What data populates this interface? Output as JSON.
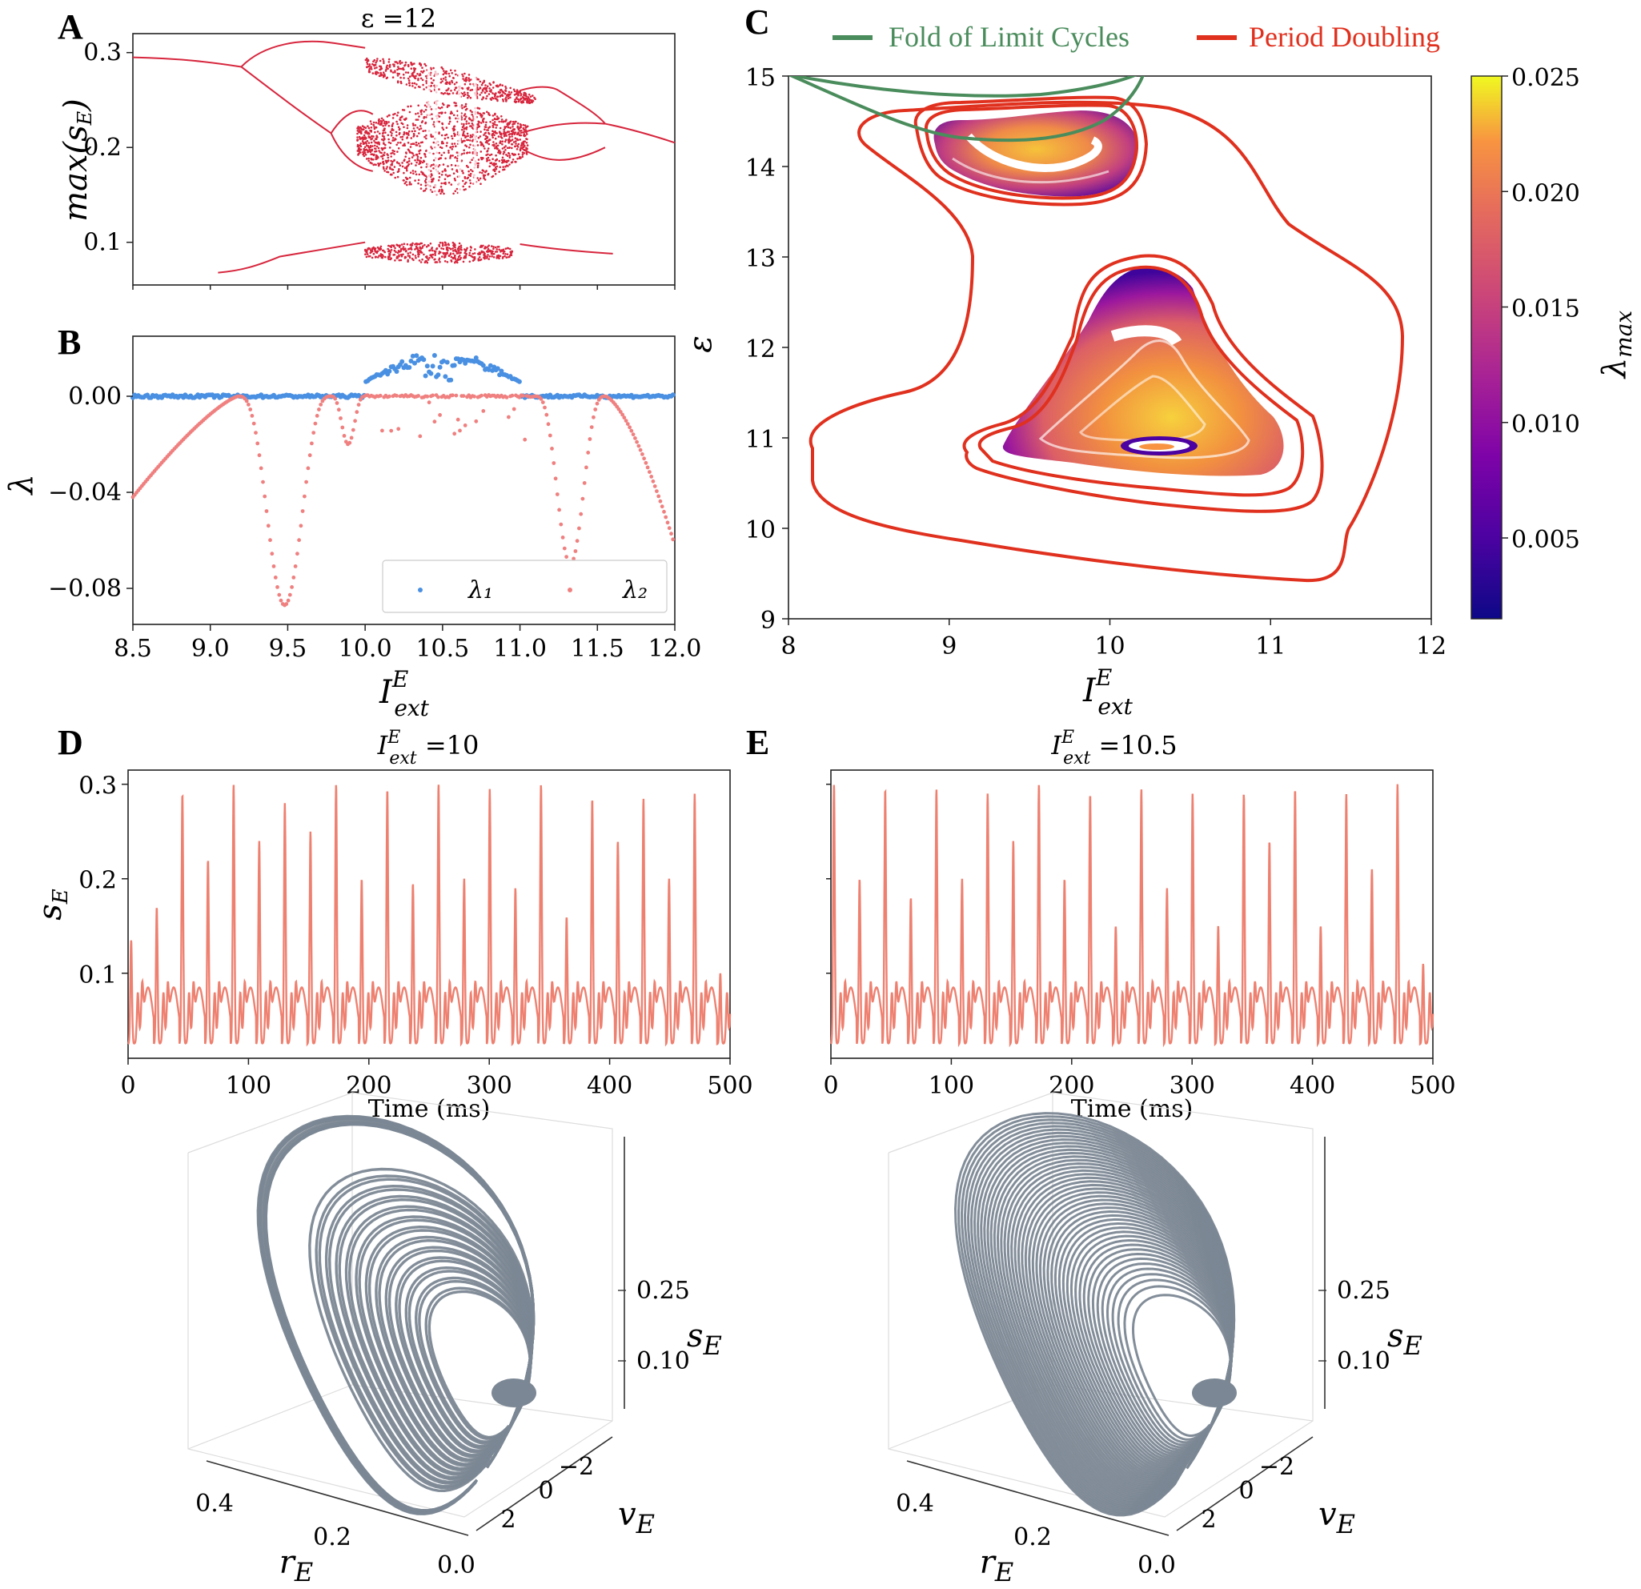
{
  "chart_data": [
    {
      "panel": "A",
      "type": "scatter",
      "title": "ε =12",
      "ylabel": "max(s_E)",
      "xlabel": "",
      "xlim": [
        8.5,
        12.0
      ],
      "ylim": [
        0.055,
        0.32
      ],
      "yticks": [
        "0.1",
        "0.2",
        "0.3"
      ],
      "ytick_values": [
        0.1,
        0.2,
        0.3
      ],
      "color": "#d7263d",
      "description": "Bifurcation diagram of max(s_E) vs I_ext^E"
    },
    {
      "panel": "B",
      "type": "scatter",
      "ylabel": "λ",
      "xlabel": "I_ext^E",
      "xlim": [
        8.5,
        12.0
      ],
      "ylim": [
        -0.095,
        0.025
      ],
      "xticks": [
        "8.5",
        "9.0",
        "9.5",
        "10.0",
        "10.5",
        "11.0",
        "11.5",
        "12.0"
      ],
      "xtick_values": [
        8.5,
        9.0,
        9.5,
        10.0,
        10.5,
        11.0,
        11.5,
        12.0
      ],
      "yticks": [
        "0.00",
        "−0.04",
        "−0.08"
      ],
      "ytick_values": [
        0.0,
        -0.04,
        -0.08
      ],
      "legend": [
        "λ₁",
        "λ₂"
      ],
      "series": [
        {
          "name": "λ₁",
          "color": "#4a90e2"
        },
        {
          "name": "λ₂",
          "color": "#f08080"
        }
      ]
    },
    {
      "panel": "C",
      "type": "heatmap",
      "xlabel": "I_ext^E",
      "ylabel": "ε",
      "xlim": [
        8,
        12
      ],
      "ylim": [
        9,
        15
      ],
      "xticks": [
        "8",
        "9",
        "10",
        "11",
        "12"
      ],
      "xtick_values": [
        8,
        9,
        10,
        11,
        12
      ],
      "yticks": [
        "9",
        "10",
        "11",
        "12",
        "13",
        "14",
        "15"
      ],
      "ytick_values": [
        9,
        10,
        11,
        12,
        13,
        14,
        15
      ],
      "legend": [
        "Fold of Limit Cycles",
        "Period Doubling"
      ],
      "legend_colors": [
        "#4a8c5c",
        "#e0301e"
      ],
      "colorbar_label": "λmax",
      "colorbar_ticks": [
        "0.025",
        "0.020",
        "0.015",
        "0.010",
        "0.005"
      ],
      "colorbar_values": [
        0.025,
        0.02,
        0.015,
        0.01,
        0.005
      ],
      "colorbar_range": [
        0.0015,
        0.025
      ]
    },
    {
      "panel": "D",
      "type": "line",
      "title": "I_ext^E =10",
      "xlabel": "Time (ms)",
      "ylabel": "s_E",
      "xlim": [
        0,
        500
      ],
      "ylim": [
        0.01,
        0.315
      ],
      "xticks": [
        "0",
        "100",
        "200",
        "300",
        "400",
        "500"
      ],
      "xtick_values": [
        0,
        100,
        200,
        300,
        400,
        500
      ],
      "yticks": [
        "0.1",
        "0.2",
        "0.3"
      ],
      "ytick_values": [
        0.1,
        0.2,
        0.3
      ],
      "color": "#ee8070",
      "peaks": [
        0.135,
        0.17,
        0.29,
        0.22,
        0.3,
        0.24,
        0.28,
        0.25,
        0.3,
        0.2,
        0.295,
        0.195,
        0.3,
        0.2,
        0.295,
        0.19,
        0.3,
        0.16,
        0.285,
        0.24,
        0.285,
        0.2,
        0.29,
        0.1
      ]
    },
    {
      "panel": "E",
      "type": "line",
      "title": "I_ext^E =10.5",
      "xlabel": "Time (ms)",
      "xlim": [
        0,
        500
      ],
      "ylim": [
        0.01,
        0.315
      ],
      "xticks": [
        "0",
        "100",
        "200",
        "300",
        "400",
        "500"
      ],
      "xtick_values": [
        0,
        100,
        200,
        300,
        400,
        500
      ],
      "color": "#ee8070",
      "peaks": [
        0.3,
        0.2,
        0.295,
        0.18,
        0.295,
        0.2,
        0.29,
        0.24,
        0.3,
        0.2,
        0.29,
        0.15,
        0.295,
        0.19,
        0.29,
        0.15,
        0.29,
        0.24,
        0.295,
        0.15,
        0.29,
        0.21,
        0.3,
        0.11
      ]
    },
    {
      "panel": "D-3d",
      "type": "line",
      "xlabel": "r_E",
      "ylabel": "v_E",
      "zlabel": "s_E",
      "rticks": [
        "0.4",
        "0.2",
        "0.0"
      ],
      "vticks": [
        "−2",
        "0",
        "2"
      ],
      "sticks": [
        "0.25",
        "0.10"
      ],
      "color": "#7b8794"
    },
    {
      "panel": "E-3d",
      "type": "line",
      "xlabel": "r_E",
      "ylabel": "v_E",
      "zlabel": "s_E",
      "rticks": [
        "0.4",
        "0.2",
        "0.0"
      ],
      "vticks": [
        "−2",
        "0",
        "2"
      ],
      "sticks": [
        "0.25",
        "0.10"
      ],
      "color": "#7b8794"
    }
  ],
  "labels": {
    "A": "A",
    "B": "B",
    "C": "C",
    "D": "D",
    "E": "E"
  }
}
